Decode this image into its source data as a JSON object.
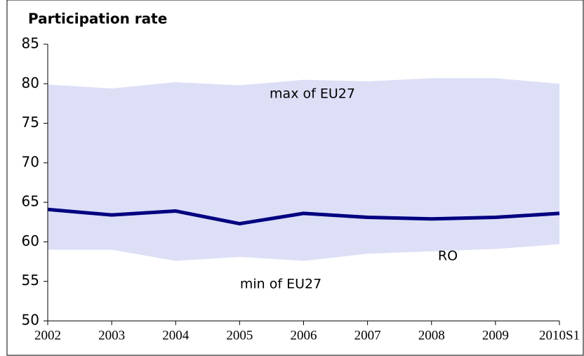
{
  "chart_data": {
    "type": "line",
    "title": "Participation rate",
    "categories": [
      "2002",
      "2003",
      "2004",
      "2005",
      "2006",
      "2007",
      "2008",
      "2009",
      "2010S1"
    ],
    "series": [
      {
        "name": "max of EU27",
        "color": "#dcdff6",
        "values": [
          79.9,
          79.4,
          80.2,
          79.8,
          80.5,
          80.3,
          80.7,
          80.7,
          80.0
        ]
      },
      {
        "name": "min of EU27",
        "color": "#dcdff6",
        "values": [
          59.0,
          59.0,
          57.6,
          58.1,
          57.6,
          58.5,
          58.8,
          59.1,
          59.7
        ]
      },
      {
        "name": "RO",
        "color": "#000080",
        "values": [
          64.1,
          63.4,
          63.9,
          62.3,
          63.6,
          63.1,
          62.9,
          63.1,
          63.6
        ]
      }
    ],
    "ylim": [
      50,
      85
    ],
    "yticks": [
      50,
      55,
      60,
      65,
      70,
      75,
      80,
      85
    ],
    "grid": false
  }
}
